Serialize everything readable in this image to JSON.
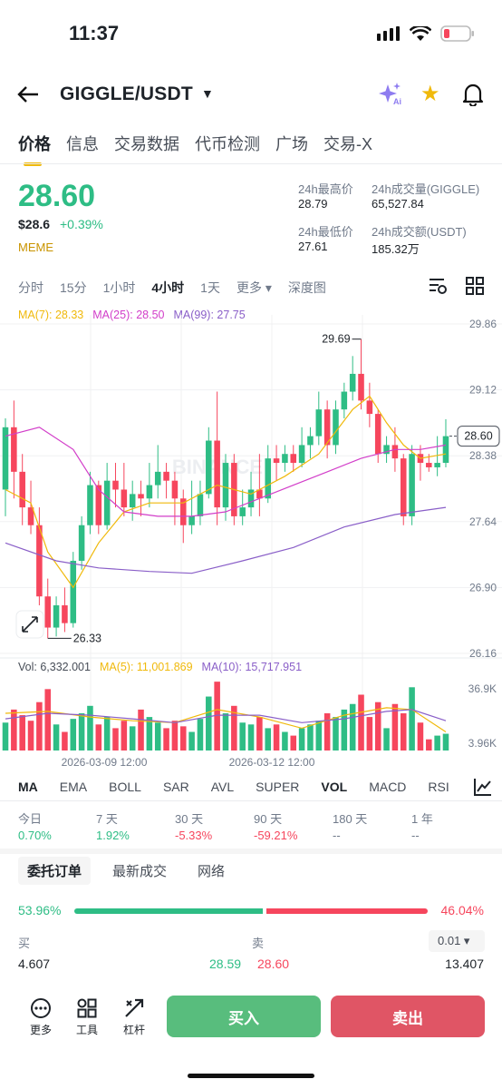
{
  "status": {
    "time": "11:37"
  },
  "nav": {
    "pair": "GIGGLE/USDT",
    "ai_label": "Ai"
  },
  "tabs": [
    "价格",
    "信息",
    "交易数据",
    "代币检测",
    "广场",
    "交易-X"
  ],
  "ticker": {
    "last_price": "28.60",
    "usd_price": "$28.6",
    "change": "+0.39%",
    "tag": "MEME",
    "high_label": "24h最高价",
    "high": "28.79",
    "low_label": "24h最低价",
    "low": "27.61",
    "vol_base_label": "24h成交量(GIGGLE)",
    "vol_base": "65,527.84",
    "vol_quote_label": "24h成交额(USDT)",
    "vol_quote": "185.32万"
  },
  "timeframes": [
    "分时",
    "15分",
    "1小时",
    "4小时",
    "1天",
    "更多 ▾",
    "深度图"
  ],
  "ma_legend": {
    "ma7": "MA(7): 28.33",
    "ma25": "MA(25): 28.50",
    "ma99": "MA(99): 27.75"
  },
  "vol_legend": {
    "vol": "Vol: 6,332.001",
    "ma5": "MA(5): 11,001.869",
    "ma10": "MA(10): 15,717.951"
  },
  "chart_data": {
    "type": "candlestick",
    "y_axis_labels": [
      "29.86",
      "29.12",
      "28.38",
      "27.64",
      "26.90",
      "26.16"
    ],
    "ylim": [
      26.16,
      29.86
    ],
    "current_price_label": "28.60",
    "max_label": "29.69",
    "min_label": "26.33",
    "vol_axis_labels": [
      "36.9K",
      "3.96K"
    ],
    "x_labels": [
      "2026-03-09 12:00",
      "2026-03-12 12:00"
    ],
    "watermark": "BINANCE",
    "candles": [
      [
        28.0,
        28.7,
        27.7,
        28.8,
        15
      ],
      [
        28.7,
        28.2,
        27.9,
        29.0,
        22
      ],
      [
        28.2,
        27.8,
        27.6,
        28.4,
        19
      ],
      [
        27.8,
        27.6,
        27.5,
        28.1,
        16
      ],
      [
        27.6,
        26.8,
        26.7,
        27.8,
        26
      ],
      [
        26.8,
        26.45,
        26.33,
        27.0,
        33
      ],
      [
        26.45,
        26.7,
        26.35,
        26.8,
        14
      ],
      [
        26.7,
        26.5,
        26.4,
        26.9,
        10
      ],
      [
        26.5,
        27.2,
        26.45,
        27.3,
        17
      ],
      [
        27.2,
        27.6,
        27.1,
        27.7,
        20
      ],
      [
        27.6,
        28.05,
        27.5,
        28.2,
        24
      ],
      [
        28.05,
        27.6,
        27.5,
        28.1,
        14
      ],
      [
        27.6,
        28.1,
        27.55,
        28.3,
        18
      ],
      [
        28.1,
        28.0,
        27.8,
        28.3,
        12
      ],
      [
        28.0,
        27.8,
        27.7,
        28.3,
        16
      ],
      [
        27.8,
        27.95,
        27.65,
        28.1,
        13
      ],
      [
        27.95,
        27.9,
        27.7,
        28.1,
        22
      ],
      [
        27.9,
        28.05,
        27.8,
        28.3,
        18
      ],
      [
        28.05,
        28.2,
        27.9,
        28.5,
        15
      ],
      [
        28.2,
        28.1,
        27.9,
        28.3,
        12
      ],
      [
        28.1,
        27.9,
        27.6,
        28.2,
        16
      ],
      [
        27.9,
        27.6,
        27.4,
        28.0,
        13
      ],
      [
        27.6,
        27.7,
        27.5,
        28.1,
        10
      ],
      [
        27.7,
        27.95,
        27.6,
        28.1,
        17
      ],
      [
        27.95,
        28.55,
        27.9,
        28.7,
        29
      ],
      [
        28.55,
        27.8,
        27.6,
        29.1,
        37
      ],
      [
        27.8,
        28.3,
        27.65,
        28.4,
        20
      ],
      [
        28.3,
        27.7,
        27.6,
        28.4,
        24
      ],
      [
        27.7,
        27.8,
        27.6,
        28.0,
        15
      ],
      [
        27.8,
        28.0,
        27.7,
        28.2,
        14
      ],
      [
        28.0,
        27.9,
        27.7,
        28.4,
        18
      ],
      [
        27.9,
        28.35,
        27.85,
        28.5,
        12
      ],
      [
        28.35,
        28.3,
        28.1,
        28.5,
        14
      ],
      [
        28.3,
        28.4,
        28.2,
        28.5,
        10
      ],
      [
        28.4,
        28.3,
        28.2,
        28.5,
        8
      ],
      [
        28.3,
        28.5,
        28.25,
        28.7,
        12
      ],
      [
        28.5,
        28.6,
        28.35,
        28.7,
        14
      ],
      [
        28.6,
        28.9,
        28.5,
        29.1,
        16
      ],
      [
        28.9,
        28.5,
        28.35,
        29.0,
        20
      ],
      [
        28.5,
        28.9,
        28.4,
        29.0,
        18
      ],
      [
        28.9,
        29.1,
        28.8,
        29.2,
        22
      ],
      [
        29.1,
        29.3,
        29.0,
        29.5,
        25
      ],
      [
        29.3,
        29.0,
        28.9,
        29.69,
        30
      ],
      [
        29.0,
        28.85,
        28.7,
        29.2,
        18
      ],
      [
        28.85,
        28.4,
        28.3,
        28.9,
        26
      ],
      [
        28.4,
        28.5,
        28.3,
        28.6,
        12
      ],
      [
        28.5,
        28.35,
        28.2,
        28.7,
        25
      ],
      [
        28.35,
        27.7,
        27.6,
        28.4,
        20
      ],
      [
        27.7,
        28.4,
        27.6,
        28.5,
        34
      ],
      [
        28.4,
        28.3,
        28.1,
        28.5,
        15
      ],
      [
        28.3,
        28.25,
        28.2,
        28.4,
        6
      ],
      [
        28.25,
        28.3,
        28.15,
        28.6,
        8
      ],
      [
        28.3,
        28.6,
        28.25,
        28.79,
        9
      ]
    ],
    "ma_lines": [
      {
        "name": "MA(7)",
        "color": "#f0b90b",
        "values": [
          [
            0,
            28.0
          ],
          [
            3,
            27.85
          ],
          [
            5,
            27.3
          ],
          [
            8,
            26.9
          ],
          [
            11,
            27.4
          ],
          [
            14,
            27.75
          ],
          [
            17,
            27.85
          ],
          [
            21,
            27.85
          ],
          [
            25,
            28.05
          ],
          [
            29,
            27.95
          ],
          [
            33,
            28.15
          ],
          [
            37,
            28.4
          ],
          [
            41,
            28.9
          ],
          [
            43,
            29.05
          ],
          [
            45,
            28.75
          ],
          [
            47,
            28.5
          ],
          [
            49,
            28.35
          ],
          [
            52,
            28.4
          ]
        ]
      },
      {
        "name": "MA(25)",
        "color": "#d23ec9",
        "values": [
          [
            0,
            28.6
          ],
          [
            4,
            28.7
          ],
          [
            8,
            28.45
          ],
          [
            11,
            28.0
          ],
          [
            14,
            27.75
          ],
          [
            18,
            27.7
          ],
          [
            22,
            27.7
          ],
          [
            26,
            27.75
          ],
          [
            30,
            27.9
          ],
          [
            34,
            28.05
          ],
          [
            38,
            28.2
          ],
          [
            42,
            28.35
          ],
          [
            46,
            28.45
          ],
          [
            49,
            28.45
          ],
          [
            52,
            28.5
          ]
        ]
      },
      {
        "name": "MA(99)",
        "color": "#8a5fc8",
        "values": [
          [
            0,
            27.4
          ],
          [
            6,
            27.2
          ],
          [
            11,
            27.12
          ],
          [
            17,
            27.08
          ],
          [
            22,
            27.06
          ],
          [
            28,
            27.2
          ],
          [
            34,
            27.35
          ],
          [
            40,
            27.58
          ],
          [
            46,
            27.72
          ],
          [
            52,
            27.8
          ]
        ]
      }
    ],
    "vol_ma_lines": [
      {
        "name": "MA(5)",
        "color": "#f0b90b",
        "values": [
          [
            0,
            20
          ],
          [
            5,
            21
          ],
          [
            10,
            18
          ],
          [
            15,
            16
          ],
          [
            20,
            15
          ],
          [
            25,
            22
          ],
          [
            30,
            18
          ],
          [
            35,
            12
          ],
          [
            40,
            19
          ],
          [
            45,
            23
          ],
          [
            48,
            22
          ],
          [
            52,
            10
          ]
        ]
      },
      {
        "name": "MA(10)",
        "color": "#8a5fc8",
        "values": [
          [
            0,
            17
          ],
          [
            5,
            20
          ],
          [
            10,
            19
          ],
          [
            15,
            17
          ],
          [
            20,
            15
          ],
          [
            25,
            19
          ],
          [
            30,
            19
          ],
          [
            35,
            15
          ],
          [
            40,
            17
          ],
          [
            45,
            21
          ],
          [
            48,
            22
          ],
          [
            52,
            16
          ]
        ]
      }
    ]
  },
  "indicators": [
    "MA",
    "EMA",
    "BOLL",
    "SAR",
    "AVL",
    "SUPER",
    "VOL",
    "MACD",
    "RSI"
  ],
  "performance": [
    {
      "label": "今日",
      "value": "0.70%",
      "tone": "green"
    },
    {
      "label": "7 天",
      "value": "1.92%",
      "tone": "green"
    },
    {
      "label": "30 天",
      "value": "-5.33%",
      "tone": "red"
    },
    {
      "label": "90 天",
      "value": "-59.21%",
      "tone": "red"
    },
    {
      "label": "180 天",
      "value": "--",
      "tone": "grey"
    },
    {
      "label": "1 年",
      "value": "--",
      "tone": "grey"
    }
  ],
  "orderbook": {
    "tabs": [
      "委托订单",
      "最新成交",
      "网络"
    ],
    "buy_ratio": "53.96%",
    "sell_ratio": "46.04%",
    "buy_label": "买",
    "sell_label": "卖",
    "step": "0.01 ▾",
    "row1": {
      "bid_qty": "4.607",
      "bid_price": "28.59",
      "ask_price": "28.60",
      "ask_qty": "13.407"
    }
  },
  "bottom": {
    "more": "更多",
    "tools": "工具",
    "leverage": "杠杆",
    "buy": "买入",
    "sell": "卖出"
  }
}
